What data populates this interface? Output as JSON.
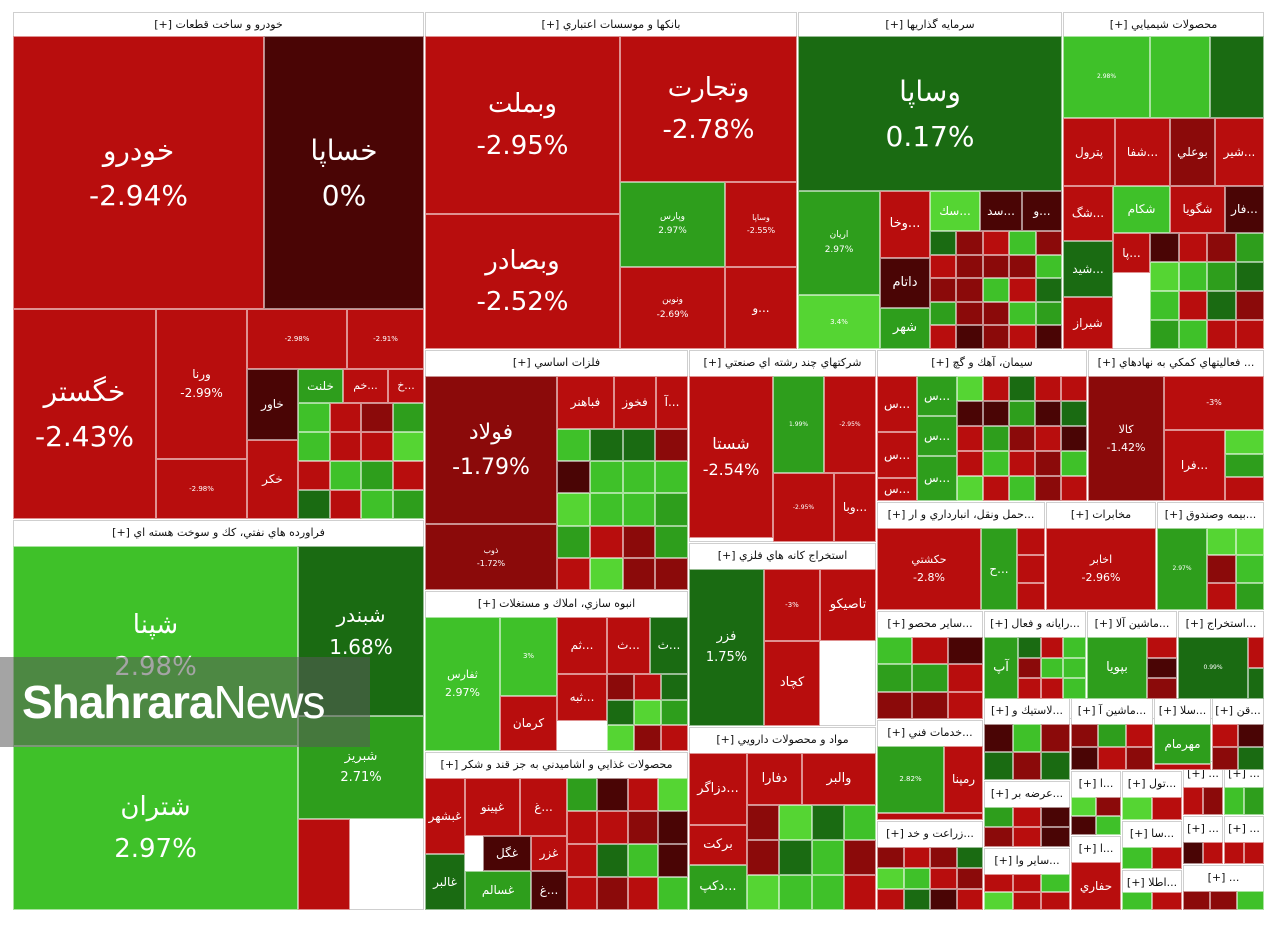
{
  "colors": {
    "red": "#b80d0d",
    "dark_red": "#8b0a0a",
    "maroon": "#4a0505",
    "green": "#2e9e1c",
    "light_green": "#3fc129",
    "dark_green": "#1a6b12",
    "lime": "#55d533"
  },
  "watermark": {
    "bold": "Shahrara",
    "regular": "News"
  },
  "chart_data": {
    "type": "treemap",
    "sectors": [
      {
        "title": "خودرو و ساخت قطعات [+]",
        "tiles": [
          {
            "name": "خودرو",
            "value": -2.94,
            "shade": "red"
          },
          {
            "name": "خساپا",
            "value": 0,
            "shade": "maroon"
          },
          {
            "name": "خگستر",
            "value": -2.43,
            "shade": "red"
          },
          {
            "name": "ورنا",
            "value": -2.99,
            "shade": "red"
          },
          {
            "name": "",
            "value": -2.98,
            "shade": "red"
          },
          {
            "name": "",
            "value": -2.98,
            "shade": "red"
          },
          {
            "name": "",
            "value": -2.91,
            "shade": "red"
          },
          {
            "name": "خاور",
            "value": null,
            "shade": "maroon"
          },
          {
            "name": "خلنت",
            "value": null,
            "shade": "green"
          },
          {
            "name": "...خم",
            "value": null,
            "shade": "red"
          },
          {
            "name": "...خ",
            "value": null,
            "shade": "red"
          },
          {
            "name": "خكر",
            "value": null,
            "shade": "red"
          }
        ]
      },
      {
        "title": "بانكها و موسسات اعتباري [+]",
        "tiles": [
          {
            "name": "وبملت",
            "value": -2.95,
            "shade": "red"
          },
          {
            "name": "وتجارت",
            "value": -2.78,
            "shade": "red"
          },
          {
            "name": "وبصادر",
            "value": -2.52,
            "shade": "red"
          },
          {
            "name": "وپارس",
            "value": 2.97,
            "shade": "green"
          },
          {
            "name": "وساپا",
            "value": -2.55,
            "shade": "red"
          },
          {
            "name": "ونوين",
            "value": -2.69,
            "shade": "red"
          },
          {
            "name": "...و",
            "value": null,
            "shade": "red"
          }
        ]
      },
      {
        "title": "سرمايه گذاريها [+]",
        "tiles": [
          {
            "name": "وساپا",
            "value": 0.17,
            "shade": "dark_green"
          },
          {
            "name": "اريان",
            "value": 2.97,
            "shade": "green"
          },
          {
            "name": "...وخا",
            "value": null,
            "shade": "red"
          },
          {
            "name": "...سك",
            "value": null,
            "shade": "lime"
          },
          {
            "name": "...سد",
            "value": null,
            "shade": "maroon"
          },
          {
            "name": "...و",
            "value": null,
            "shade": "maroon"
          },
          {
            "name": "",
            "value": 3.4,
            "shade": "lime"
          },
          {
            "name": "داتام",
            "value": null,
            "shade": "maroon"
          },
          {
            "name": "شهر",
            "value": null,
            "shade": "green"
          }
        ]
      },
      {
        "title": "محصولات شيميايي [+]",
        "tiles": [
          {
            "name": "",
            "value": 2.98,
            "shade": "light_green"
          },
          {
            "name": "",
            "value": null,
            "shade": "light_green"
          },
          {
            "name": "",
            "value": null,
            "shade": "dark_green"
          },
          {
            "name": "پترول",
            "value": null,
            "shade": "red"
          },
          {
            "name": "...شفا",
            "value": null,
            "shade": "red"
          },
          {
            "name": "بوعلي",
            "value": null,
            "shade": "dark_red"
          },
          {
            "name": "...شير",
            "value": null,
            "shade": "red"
          },
          {
            "name": "...شگ",
            "value": null,
            "shade": "red"
          },
          {
            "name": "شكام",
            "value": null,
            "shade": "light_green"
          },
          {
            "name": "شگويا",
            "value": null,
            "shade": "red"
          },
          {
            "name": "...فار",
            "value": null,
            "shade": "maroon"
          },
          {
            "name": "...شيد",
            "value": null,
            "shade": "dark_green"
          },
          {
            "name": "...پا",
            "value": null,
            "shade": "red"
          },
          {
            "name": "شيراز",
            "value": null,
            "shade": "red"
          }
        ]
      },
      {
        "title": "فراورده هاي نفتي، كك و سوخت هسته اي [+]",
        "tiles": [
          {
            "name": "شپنا",
            "value": 2.98,
            "shade": "light_green"
          },
          {
            "name": "شبندر",
            "value": 1.68,
            "shade": "dark_green"
          },
          {
            "name": "شتران",
            "value": 2.97,
            "shade": "light_green"
          },
          {
            "name": "شبريز",
            "value": 2.71,
            "shade": "green"
          },
          {
            "name": "",
            "value": null,
            "shade": "red"
          }
        ]
      },
      {
        "title": "فلزات اساسي [+]",
        "tiles": [
          {
            "name": "فولاد",
            "value": -1.79,
            "shade": "dark_red"
          },
          {
            "name": "ذوب",
            "value": -1.72,
            "shade": "dark_red"
          },
          {
            "name": "فباهنر",
            "value": null,
            "shade": "red"
          },
          {
            "name": "فخوز",
            "value": null,
            "shade": "red"
          },
          {
            "name": "...آ",
            "value": null,
            "shade": "red"
          }
        ]
      },
      {
        "title": "شركتهاي چند رشته اي صنعتي [+]",
        "tiles": [
          {
            "name": "شستا",
            "value": -2.54,
            "shade": "red"
          },
          {
            "name": "",
            "value": 1.99,
            "shade": "green"
          },
          {
            "name": "",
            "value": -2.95,
            "shade": "red"
          },
          {
            "name": "",
            "value": -2.95,
            "shade": "red"
          },
          {
            "name": "...وبا",
            "value": null,
            "shade": "red"
          }
        ]
      },
      {
        "title": "سيمان، آهك و گچ [+]",
        "tiles": [
          {
            "name": "...س",
            "value": null,
            "shade": "red"
          },
          {
            "name": "...س",
            "value": null,
            "shade": "green"
          },
          {
            "name": "...س",
            "value": null,
            "shade": "red"
          },
          {
            "name": "...س",
            "value": null,
            "shade": "green"
          },
          {
            "name": "...س",
            "value": null,
            "shade": "green"
          },
          {
            "name": "...س",
            "value": null,
            "shade": "red"
          }
        ]
      },
      {
        "title": "... فعاليتهاي كمكي به نهادهاي [+]",
        "tiles": [
          {
            "name": "كالا",
            "value": -1.42,
            "shade": "dark_red"
          },
          {
            "name": "",
            "value": -3,
            "shade": "red"
          },
          {
            "name": "...فرا",
            "value": null,
            "shade": "red"
          }
        ]
      },
      {
        "title": "انبوه سازي، املاك و مستغلات [+]",
        "tiles": [
          {
            "name": "ثفارس",
            "value": 2.97,
            "shade": "light_green"
          },
          {
            "name": "",
            "value": 3,
            "shade": "light_green"
          },
          {
            "name": "...ثم",
            "value": null,
            "shade": "red"
          },
          {
            "name": "...ث",
            "value": null,
            "shade": "red"
          },
          {
            "name": "...ث",
            "value": null,
            "shade": "dark_green"
          },
          {
            "name": "كرمان",
            "value": null,
            "shade": "red"
          },
          {
            "name": "...ثبه",
            "value": null,
            "shade": "red"
          }
        ]
      },
      {
        "title": "استخراج كانه هاي فلزي [+]",
        "tiles": [
          {
            "name": "فزر",
            "value": 1.75,
            "shade": "dark_green"
          },
          {
            "name": "",
            "value": -3,
            "shade": "red"
          },
          {
            "name": "تاصيكو",
            "value": null,
            "shade": "red"
          },
          {
            "name": "كچاد",
            "value": null,
            "shade": "red"
          }
        ]
      },
      {
        "title": "...حمل ونقل، انبارداري و ار [+]",
        "tiles": [
          {
            "name": "حكشتي",
            "value": -2.8,
            "shade": "red"
          },
          {
            "name": "...ح",
            "value": null,
            "shade": "green"
          }
        ]
      },
      {
        "title": "مخابرات [+]",
        "tiles": [
          {
            "name": "اخابر",
            "value": -2.96,
            "shade": "red"
          }
        ]
      },
      {
        "title": "...بيمه وصندوق [+]",
        "tiles": [
          {
            "name": "",
            "value": 2.97,
            "shade": "green"
          }
        ]
      },
      {
        "title": "...ساير محصو [+]",
        "tiles": []
      },
      {
        "title": "...رايانه و فعال [+]",
        "tiles": [
          {
            "name": "آپ",
            "value": null,
            "shade": "green"
          }
        ]
      },
      {
        "title": "...ماشين آلا [+]",
        "tiles": [
          {
            "name": "بپويا",
            "value": null,
            "shade": "green"
          }
        ]
      },
      {
        "title": "...استخراج [+]",
        "tiles": [
          {
            "name": "",
            "value": 0.99,
            "shade": "dark_green"
          }
        ]
      },
      {
        "title": "محصولات غذايي و اشاميدني به جز قند و شكر [+]",
        "tiles": [
          {
            "name": "غبشهر",
            "value": null,
            "shade": "red"
          },
          {
            "name": "غپينو",
            "value": null,
            "shade": "red"
          },
          {
            "name": "...غ",
            "value": null,
            "shade": "red"
          },
          {
            "name": "غگل",
            "value": null,
            "shade": "maroon"
          },
          {
            "name": "غزر",
            "value": null,
            "shade": "red"
          },
          {
            "name": "غالبر",
            "value": null,
            "shade": "dark_green"
          },
          {
            "name": "غسالم",
            "value": null,
            "shade": "green"
          },
          {
            "name": "...غ",
            "value": null,
            "shade": "maroon"
          }
        ]
      },
      {
        "title": "مواد و محصولات دارويي [+]",
        "tiles": [
          {
            "name": "...دزاگر",
            "value": null,
            "shade": "red"
          },
          {
            "name": "دفارا",
            "value": null,
            "shade": "red"
          },
          {
            "name": "والبر",
            "value": null,
            "shade": "red"
          },
          {
            "name": "بركت",
            "value": null,
            "shade": "red"
          },
          {
            "name": "...دكپ",
            "value": null,
            "shade": "green"
          }
        ]
      },
      {
        "title": "...خدمات فني [+]",
        "tiles": [
          {
            "name": "",
            "value": 2.82,
            "shade": "green"
          },
          {
            "name": "رمپنا",
            "value": null,
            "shade": "red"
          }
        ]
      },
      {
        "title": "...زراعت و خد [+]",
        "tiles": []
      },
      {
        "title": "...ساير وا [+]",
        "tiles": []
      },
      {
        "title": "...لاستيك و [+]",
        "tiles": []
      },
      {
        "title": "...ماشين آ [+]",
        "tiles": []
      },
      {
        "title": "...سلا [+]",
        "tiles": [
          {
            "name": "مهرمام",
            "value": null,
            "shade": "green"
          }
        ]
      },
      {
        "title": "...قن [+]",
        "tiles": []
      },
      {
        "title": "...عرضه بر [+]",
        "tiles": []
      },
      {
        "title": "...ا [+]",
        "tiles": []
      },
      {
        "title": "...تول [+]",
        "tiles": []
      },
      {
        "title": "... [+]",
        "tiles": []
      },
      {
        "title": "... [+]",
        "tiles": []
      },
      {
        "title": "...ا [+]",
        "tiles": [
          {
            "name": "حفاري",
            "value": null,
            "shade": "red"
          }
        ]
      },
      {
        "title": "...سا [+]",
        "tiles": []
      },
      {
        "title": "... [+]",
        "tiles": []
      },
      {
        "title": "... [+]",
        "tiles": []
      },
      {
        "title": "...اطلا [+]",
        "tiles": []
      },
      {
        "title": "... [+]",
        "tiles": []
      }
    ]
  }
}
